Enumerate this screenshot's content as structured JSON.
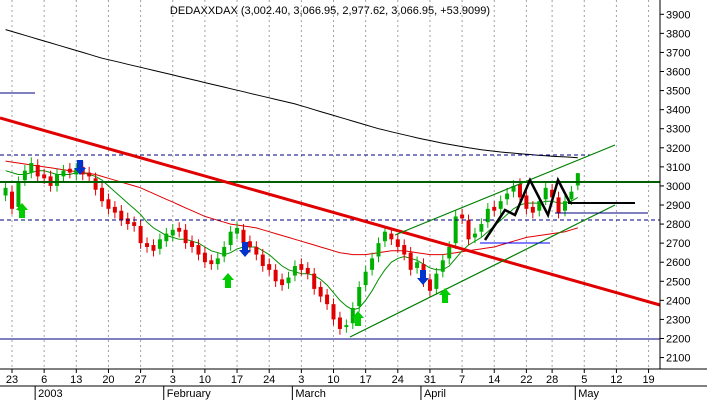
{
  "chart_data": {
    "type": "candlestick",
    "title": "DEDAXXDAX (3,002.40, 3,066.95, 2,977.62, 3,066.95, +53.9099)",
    "up_color": "#00b000",
    "down_color": "#e00000",
    "categories": [
      null,
      "23",
      null,
      null,
      null,
      null,
      "6",
      null,
      null,
      null,
      null,
      "13",
      null,
      null,
      null,
      null,
      "20",
      null,
      null,
      null,
      null,
      "27",
      null,
      null,
      null,
      null,
      "3",
      null,
      null,
      null,
      null,
      "10",
      null,
      null,
      null,
      null,
      "17",
      null,
      null,
      null,
      null,
      "24",
      null,
      null,
      null,
      null,
      "3",
      null,
      null,
      null,
      null,
      "10",
      null,
      null,
      null,
      null,
      "17",
      null,
      null,
      null,
      null,
      "24",
      null,
      null,
      null,
      null,
      "31",
      null,
      null,
      null,
      null,
      "7",
      null,
      null,
      null,
      null,
      "14",
      null,
      null,
      null,
      null,
      "22",
      null,
      null,
      null,
      "28",
      null,
      null,
      null,
      null,
      "5",
      null,
      null,
      null,
      null,
      "12",
      null,
      null,
      null,
      null,
      "19"
    ],
    "months": [
      null,
      null,
      null,
      null,
      null,
      null,
      "2003",
      null,
      null,
      null,
      null,
      null,
      null,
      null,
      null,
      null,
      null,
      null,
      null,
      null,
      null,
      null,
      null,
      null,
      null,
      null,
      "February",
      null,
      null,
      null,
      null,
      null,
      null,
      null,
      null,
      null,
      null,
      null,
      null,
      null,
      null,
      null,
      null,
      null,
      null,
      null,
      "March",
      null,
      null,
      null,
      null,
      null,
      null,
      null,
      null,
      null,
      null,
      null,
      null,
      null,
      null,
      null,
      null,
      null,
      null,
      null,
      "April",
      null,
      null,
      null,
      null,
      null,
      null,
      null,
      null,
      null,
      null,
      null,
      null,
      null,
      null,
      null,
      null,
      null,
      null,
      null,
      null,
      null,
      null,
      null,
      "May",
      null,
      null,
      null,
      null,
      null,
      null,
      null,
      null,
      null,
      null
    ],
    "open": [
      2950,
      2970,
      2890,
      3030,
      3070,
      3110,
      3060,
      3050,
      3000,
      3050,
      3090,
      3060,
      3100,
      3070,
      3040,
      2990,
      2930,
      2890,
      2870,
      2830,
      2810,
      2790,
      2700,
      2690,
      2670,
      2710,
      2740,
      2780,
      2770,
      2710,
      2690,
      2650,
      2610,
      2590,
      2630,
      2690,
      2750,
      2770,
      2710,
      2680,
      2640,
      2590,
      2560,
      2510,
      2490,
      2530,
      2590,
      2570,
      2540,
      2470,
      2430,
      2380,
      2310,
      2260,
      2280,
      2370,
      2480,
      2560,
      2630,
      2710,
      2750,
      2720,
      2690,
      2650,
      2570,
      2590,
      2510,
      2460,
      2550,
      2620,
      2700,
      2850,
      2820,
      2730,
      2760,
      2810,
      2890,
      2880,
      2930,
      2970,
      3010,
      2950,
      2890,
      2870,
      2930,
      2980,
      2940,
      2870,
      2930,
      3002.4,
      null,
      null,
      null,
      null,
      null,
      null,
      null,
      null,
      null,
      null,
      null
    ],
    "high": [
      3020,
      3000,
      3050,
      3110,
      3150,
      3140,
      3090,
      3080,
      3090,
      3110,
      3120,
      3120,
      3130,
      3100,
      3070,
      3020,
      2960,
      2920,
      2900,
      2860,
      2840,
      2820,
      2730,
      2720,
      2750,
      2780,
      2800,
      2810,
      2800,
      2740,
      2720,
      2680,
      2640,
      2650,
      2710,
      2790,
      2810,
      2800,
      2740,
      2710,
      2670,
      2620,
      2590,
      2540,
      2550,
      2610,
      2620,
      2600,
      2570,
      2500,
      2460,
      2410,
      2340,
      2300,
      2390,
      2500,
      2580,
      2650,
      2730,
      2790,
      2780,
      2750,
      2720,
      2680,
      2630,
      2620,
      2540,
      2570,
      2640,
      2710,
      2870,
      2880,
      2850,
      2780,
      2830,
      2910,
      2920,
      2950,
      2990,
      3030,
      3040,
      2980,
      2920,
      2950,
      3020,
      3010,
      2970,
      2950,
      3000,
      3066.95,
      null,
      null,
      null,
      null,
      null,
      null,
      null,
      null,
      null,
      null,
      null
    ],
    "low": [
      2920,
      2850,
      2870,
      3000,
      3040,
      3020,
      3010,
      2970,
      2970,
      3020,
      3040,
      3030,
      3030,
      3020,
      2950,
      2890,
      2850,
      2830,
      2790,
      2770,
      2760,
      2670,
      2650,
      2630,
      2640,
      2680,
      2710,
      2730,
      2670,
      2650,
      2610,
      2570,
      2560,
      2560,
      2600,
      2660,
      2720,
      2670,
      2650,
      2610,
      2550,
      2530,
      2470,
      2450,
      2460,
      2500,
      2530,
      2510,
      2430,
      2390,
      2350,
      2270,
      2220,
      2230,
      2250,
      2340,
      2450,
      2530,
      2600,
      2680,
      2690,
      2650,
      2610,
      2530,
      2540,
      2470,
      2420,
      2430,
      2520,
      2590,
      2670,
      2800,
      2690,
      2700,
      2730,
      2780,
      2840,
      2850,
      2900,
      2940,
      2910,
      2850,
      2830,
      2840,
      2900,
      2910,
      2830,
      2840,
      2900,
      2977.62,
      null,
      null,
      null,
      null,
      null,
      null,
      null,
      null,
      null,
      null,
      null
    ],
    "close": [
      2990,
      2880,
      3020,
      3080,
      3120,
      3050,
      3040,
      3000,
      3060,
      3080,
      3070,
      3090,
      3060,
      3050,
      2980,
      2920,
      2880,
      2860,
      2820,
      2800,
      2790,
      2700,
      2680,
      2660,
      2720,
      2750,
      2770,
      2760,
      2700,
      2680,
      2640,
      2600,
      2590,
      2620,
      2680,
      2760,
      2780,
      2700,
      2680,
      2640,
      2580,
      2560,
      2500,
      2480,
      2520,
      2580,
      2560,
      2540,
      2460,
      2420,
      2380,
      2300,
      2250,
      2270,
      2360,
      2470,
      2550,
      2620,
      2700,
      2760,
      2720,
      2680,
      2640,
      2560,
      2600,
      2500,
      2450,
      2540,
      2610,
      2680,
      2840,
      2830,
      2720,
      2750,
      2800,
      2880,
      2870,
      2920,
      2960,
      3000,
      2940,
      2880,
      2860,
      2920,
      2990,
      2940,
      2860,
      2920,
      2970,
      3066.95,
      null,
      null,
      null,
      null,
      null,
      null,
      null,
      null,
      null,
      null,
      null
    ],
    "series": [
      {
        "color": "#000000",
        "values": [
          3820,
          3810,
          3800,
          3790,
          3780,
          3770,
          3760,
          3750,
          3740,
          3730,
          3720,
          3710,
          3700,
          3690,
          3680,
          3670,
          3662,
          3654,
          3646,
          3638,
          3630,
          3622,
          3614,
          3606,
          3598,
          3590,
          3582,
          3574,
          3566,
          3558,
          3550,
          3542,
          3534,
          3526,
          3518,
          3510,
          3502,
          3494,
          3486,
          3478,
          3470,
          3462,
          3454,
          3446,
          3438,
          3430,
          3420,
          3410,
          3400,
          3390,
          3380,
          3370,
          3360,
          3350,
          3340,
          3330,
          3320,
          3310,
          3300,
          3292,
          3284,
          3276,
          3268,
          3260,
          3252,
          3245,
          3238,
          3231,
          3224,
          3218,
          3212,
          3206,
          3200,
          3195,
          3190,
          3186,
          3182,
          3178,
          3175,
          3172,
          3169,
          3166,
          3163,
          3160,
          3158,
          3156,
          3154,
          3152,
          3150,
          3148,
          null,
          null,
          null,
          null,
          null,
          null,
          null,
          null,
          null,
          null,
          null
        ]
      },
      {
        "color": "#e00000",
        "values": [
          3130,
          3125,
          3120,
          3115,
          3110,
          3105,
          3100,
          3095,
          3090,
          3085,
          3080,
          3075,
          3070,
          3065,
          3060,
          3050,
          3040,
          3030,
          3020,
          3010,
          3000,
          2990,
          2975,
          2960,
          2945,
          2930,
          2915,
          2900,
          2885,
          2870,
          2855,
          2840,
          2830,
          2820,
          2810,
          2800,
          2795,
          2790,
          2785,
          2780,
          2770,
          2760,
          2750,
          2740,
          2730,
          2720,
          2710,
          2700,
          2690,
          2680,
          2670,
          2660,
          2650,
          2645,
          2640,
          2640,
          2640,
          2645,
          2650,
          2655,
          2660,
          2660,
          2660,
          2655,
          2650,
          2645,
          2640,
          2640,
          2640,
          2645,
          2650,
          2655,
          2660,
          2665,
          2670,
          2675,
          2680,
          2690,
          2700,
          2710,
          2720,
          2730,
          2735,
          2740,
          2745,
          2750,
          2755,
          2760,
          2770,
          2780,
          null,
          null,
          null,
          null,
          null,
          null,
          null,
          null,
          null,
          null,
          null
        ]
      },
      {
        "color": "#009000",
        "values": [
          3080,
          3070,
          3060,
          3060,
          3070,
          3080,
          3080,
          3070,
          3060,
          3060,
          3060,
          3070,
          3070,
          3060,
          3050,
          3030,
          3000,
          2970,
          2940,
          2910,
          2880,
          2850,
          2810,
          2780,
          2760,
          2740,
          2730,
          2720,
          2720,
          2710,
          2700,
          2680,
          2660,
          2650,
          2640,
          2650,
          2670,
          2680,
          2680,
          2680,
          2660,
          2640,
          2610,
          2580,
          2560,
          2550,
          2540,
          2540,
          2530,
          2510,
          2480,
          2440,
          2400,
          2370,
          2350,
          2360,
          2400,
          2450,
          2510,
          2560,
          2600,
          2620,
          2630,
          2620,
          2610,
          2590,
          2570,
          2560,
          2560,
          2580,
          2620,
          2660,
          2690,
          2710,
          2730,
          2760,
          2790,
          2820,
          2850,
          2880,
          2900,
          2910,
          2910,
          2910,
          2920,
          2920,
          2910,
          2910,
          2920,
          2940,
          null,
          null,
          null,
          null,
          null,
          null,
          null,
          null,
          null,
          null,
          null
        ]
      }
    ],
    "ylim": [
      2040,
      3975
    ],
    "yticks": [
      2100,
      2200,
      2300,
      2400,
      2500,
      2600,
      2700,
      2800,
      2900,
      3000,
      3100,
      3200,
      3300,
      3400,
      3500,
      3600,
      3700,
      3800,
      3900
    ]
  }
}
